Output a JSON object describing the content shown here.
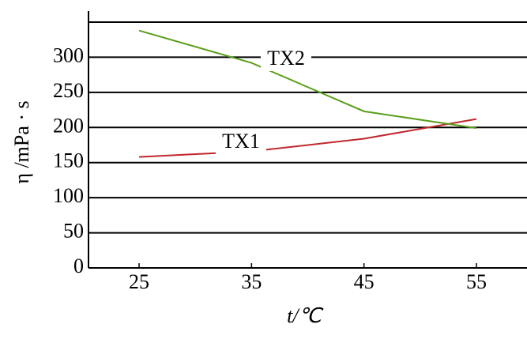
{
  "chart_data": {
    "type": "line",
    "x_label": "t/℃",
    "y_label": "η /mPa · s",
    "x": [
      25,
      35,
      45,
      55
    ],
    "series": [
      {
        "name": "TX1",
        "color": "#c0272d",
        "values": [
          158,
          166,
          184,
          212
        ]
      },
      {
        "name": "TX2",
        "color": "#5a9e1a",
        "values": [
          338,
          292,
          223,
          199
        ]
      }
    ],
    "xlim": [
      20.5,
      59.5
    ],
    "ylim": [
      0,
      350
    ],
    "xticks": [
      25,
      35,
      45,
      55
    ],
    "yticks": [
      0,
      50,
      100,
      150,
      200,
      250,
      300
    ],
    "grid": true
  }
}
